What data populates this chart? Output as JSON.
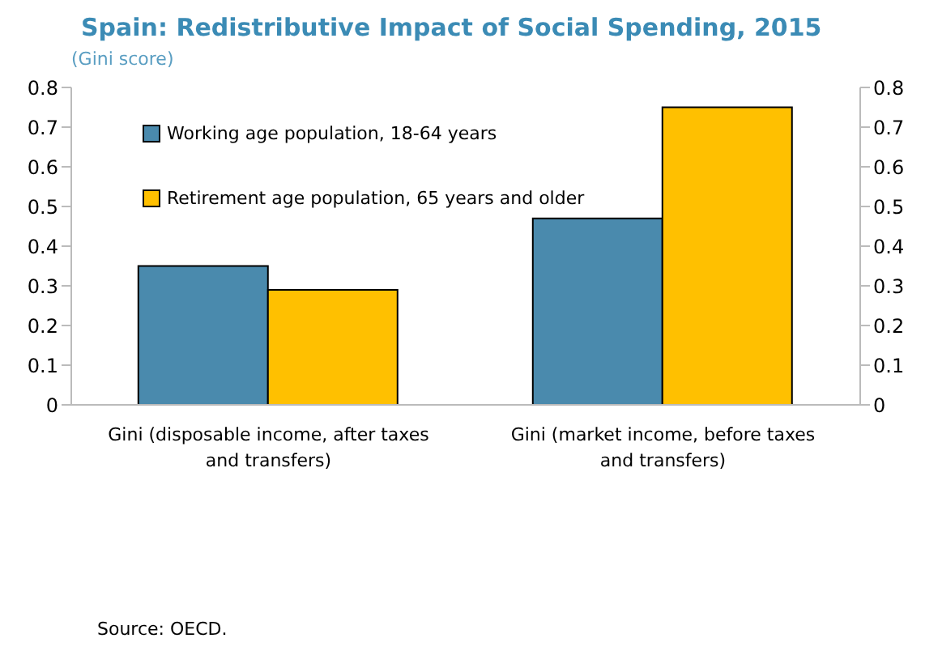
{
  "chart_data": {
    "type": "bar",
    "title": "Spain: Redistributive Impact of Social Spending, 2015",
    "ylabel": "(Gini score)",
    "categories": [
      "Gini (disposable income, after taxes and transfers)",
      "Gini (market income, before taxes and transfers)"
    ],
    "series": [
      {
        "name": "Working age population, 18-64 years",
        "color": "#4a8aad",
        "values": [
          0.35,
          0.47
        ]
      },
      {
        "name": "Retirement age population, 65 years and older",
        "color": "#ffc000",
        "values": [
          0.29,
          0.75
        ]
      }
    ],
    "ylim": [
      0,
      0.8
    ],
    "yticks": [
      0,
      0.1,
      0.2,
      0.3,
      0.4,
      0.5,
      0.6,
      0.7,
      0.8
    ],
    "y2lim": [
      0,
      0.8
    ],
    "y2ticks": [
      0,
      0.1,
      0.2,
      0.3,
      0.4,
      0.5,
      0.6,
      0.7,
      0.8
    ],
    "grid": false,
    "legend": "top left",
    "annotations": [
      "Source: OECD."
    ]
  }
}
